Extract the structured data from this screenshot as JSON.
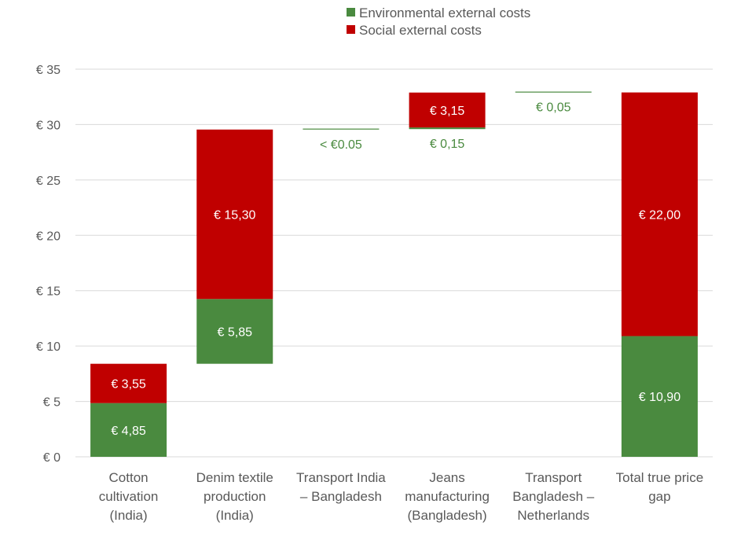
{
  "colors": {
    "environmental": "#4a8a3f",
    "social": "#c00000",
    "grid": "#d9d9d9",
    "axis_text": "#595959",
    "label_text": "#ffffff",
    "small_label_text": "#4a8a3f"
  },
  "chart_data": {
    "type": "bar",
    "subtype": "waterfall-stacked",
    "title": "",
    "xlabel": "",
    "ylabel": "",
    "ylim": [
      0,
      35
    ],
    "y_tick_values": [
      0,
      5,
      10,
      15,
      20,
      25,
      30,
      35
    ],
    "y_tick_labels": [
      "€ 0",
      "€ 5",
      "€ 10",
      "€ 15",
      "€ 20",
      "€ 25",
      "€ 30",
      "€ 35"
    ],
    "legend": {
      "placement": "top-center",
      "items": [
        {
          "name": "Environmental external costs",
          "color_key": "environmental"
        },
        {
          "name": "Social external costs",
          "color_key": "social"
        }
      ]
    },
    "categories": [
      {
        "lines": [
          "Cotton",
          "cultivation",
          "(India)"
        ]
      },
      {
        "lines": [
          "Denim textile",
          "production",
          "(India)"
        ]
      },
      {
        "lines": [
          "Transport India",
          "– Bangladesh"
        ]
      },
      {
        "lines": [
          "Jeans",
          "manufacturing",
          "(Bangladesh)"
        ]
      },
      {
        "lines": [
          "Transport",
          "Bangladesh –",
          "Netherlands"
        ]
      },
      {
        "lines": [
          "Total true price",
          "gap"
        ]
      }
    ],
    "bars": [
      {
        "base": 0,
        "segments": [
          {
            "series": "Environmental external costs",
            "value": 4.85,
            "label": "€ 4,85"
          },
          {
            "series": "Social external costs",
            "value": 3.55,
            "label": "€ 3,55"
          }
        ]
      },
      {
        "base": 8.4,
        "segments": [
          {
            "series": "Environmental external costs",
            "value": 5.85,
            "label": "€ 5,85"
          },
          {
            "series": "Social external costs",
            "value": 15.3,
            "label": "€ 15,30"
          }
        ]
      },
      {
        "base": 29.55,
        "segments": [
          {
            "series": "Environmental external costs",
            "value": 0.04,
            "label": "< €0.05",
            "label_outside": "below"
          }
        ]
      },
      {
        "base": 29.59,
        "segments": [
          {
            "series": "Environmental external costs",
            "value": 0.15,
            "label": "€ 0,15",
            "label_outside": "below"
          },
          {
            "series": "Social external costs",
            "value": 3.15,
            "label": "€ 3,15"
          }
        ]
      },
      {
        "base": 32.89,
        "segments": [
          {
            "series": "Environmental external costs",
            "value": 0.05,
            "label": "€ 0,05",
            "label_outside": "below"
          }
        ]
      },
      {
        "base": 0,
        "segments": [
          {
            "series": "Environmental external costs",
            "value": 10.9,
            "label": "€ 10,90"
          },
          {
            "series": "Social external costs",
            "value": 22.0,
            "label": "€ 22,00"
          }
        ]
      }
    ]
  }
}
